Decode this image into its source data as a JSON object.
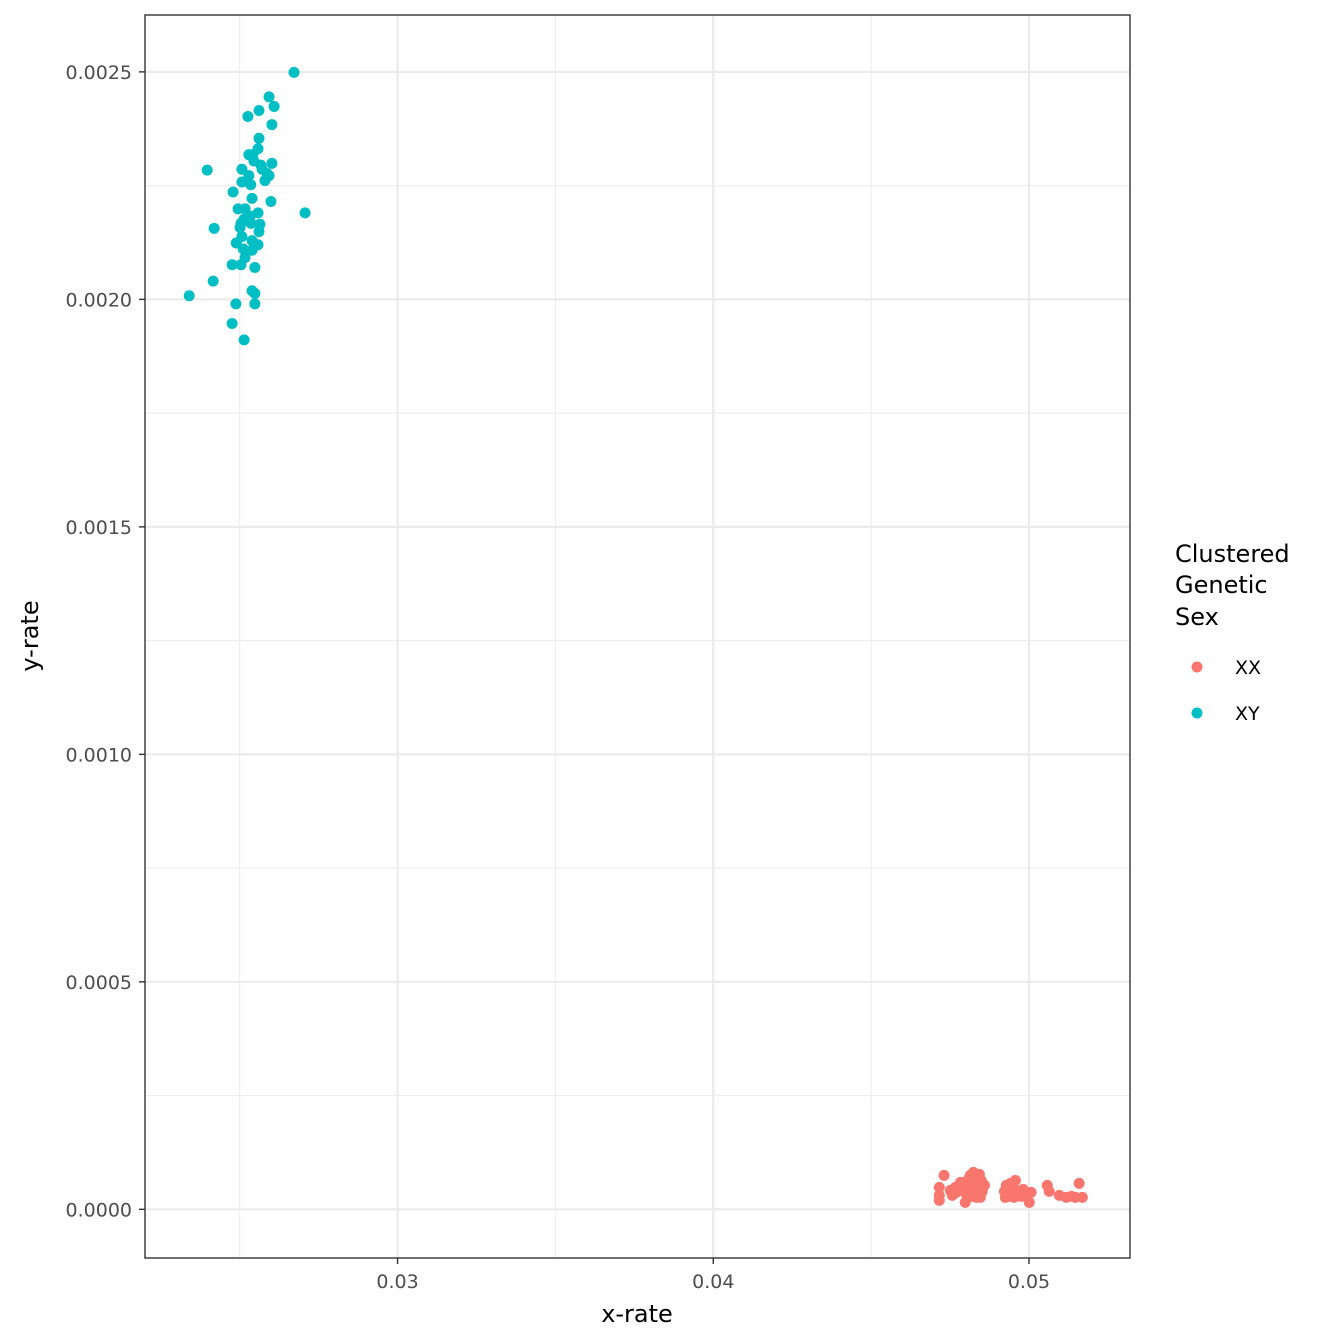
{
  "chart_data": {
    "type": "scatter",
    "xlabel": "x-rate",
    "ylabel": "y-rate",
    "xlim": [
      0.022,
      0.0532
    ],
    "ylim": [
      -0.000107,
      0.002625
    ],
    "x_ticks": [
      0.03,
      0.04,
      0.05
    ],
    "x_tick_labels": [
      "0.03",
      "0.04",
      "0.05"
    ],
    "y_ticks": [
      0,
      0.0005,
      0.001,
      0.0015,
      0.002,
      0.0025
    ],
    "y_tick_labels": [
      "0.0000",
      "0.0005",
      "0.0010",
      "0.0015",
      "0.0020",
      "0.0025"
    ],
    "grid": true,
    "legend": {
      "title_lines": [
        "Clustered",
        "Genetic",
        "Sex"
      ],
      "placement": "right"
    },
    "series": [
      {
        "name": "XX",
        "color": "#F8766D",
        "points": [
          [
            0.04716,
            1.97e-05
          ],
          [
            0.04716,
            3.07e-05
          ],
          [
            0.04716,
            4.82e-05
          ],
          [
            0.04731,
            7.45e-05
          ],
          [
            0.04751,
            4.16e-05
          ],
          [
            0.04757,
            3.07e-05
          ],
          [
            0.04767,
            4.82e-05
          ],
          [
            0.0477,
            3.72e-05
          ],
          [
            0.04776,
            5.04e-05
          ],
          [
            0.04783,
            5.92e-05
          ],
          [
            0.04786,
            4.16e-05
          ],
          [
            0.04795,
            5.7e-05
          ],
          [
            0.04798,
            1.53e-05
          ],
          [
            0.04802,
            3.29e-05
          ],
          [
            0.04805,
            4.38e-05
          ],
          [
            0.04808,
            6.57e-05
          ],
          [
            0.04811,
            4.82e-05
          ],
          [
            0.04814,
            7.45e-05
          ],
          [
            0.04817,
            5.92e-05
          ],
          [
            0.04817,
            2.85e-05
          ],
          [
            0.04821,
            5.26e-05
          ],
          [
            0.04821,
            3.72e-05
          ],
          [
            0.04824,
            8.11e-05
          ],
          [
            0.04827,
            6.35e-05
          ],
          [
            0.0483,
            4.38e-05
          ],
          [
            0.04833,
            2.63e-05
          ],
          [
            0.04833,
            7.01e-05
          ],
          [
            0.04836,
            5.7e-05
          ],
          [
            0.0484,
            3.5e-05
          ],
          [
            0.04843,
            7.67e-05
          ],
          [
            0.04846,
            4.82e-05
          ],
          [
            0.04846,
            2.63e-05
          ],
          [
            0.04849,
            6.35e-05
          ],
          [
            0.04852,
            3.94e-05
          ],
          [
            0.04859,
            5.26e-05
          ],
          [
            0.04922,
            3.94e-05
          ],
          [
            0.04925,
            2.63e-05
          ],
          [
            0.04928,
            5.26e-05
          ],
          [
            0.04931,
            3.72e-05
          ],
          [
            0.04938,
            4.6e-05
          ],
          [
            0.04938,
            2.85e-05
          ],
          [
            0.04941,
            5.7e-05
          ],
          [
            0.04947,
            3.72e-05
          ],
          [
            0.0495,
            4.82e-05
          ],
          [
            0.04953,
            2.63e-05
          ],
          [
            0.04957,
            6.35e-05
          ],
          [
            0.0496,
            4.16e-05
          ],
          [
            0.04963,
            3.07e-05
          ],
          [
            0.04969,
            3.94e-05
          ],
          [
            0.04976,
            2.85e-05
          ],
          [
            0.04982,
            4.38e-05
          ],
          [
            0.04998,
            3.29e-05
          ],
          [
            0.05001,
            1.53e-05
          ],
          [
            0.05007,
            3.72e-05
          ],
          [
            0.05058,
            5.26e-05
          ],
          [
            0.05064,
            3.94e-05
          ],
          [
            0.05096,
            3.07e-05
          ],
          [
            0.05118,
            2.63e-05
          ],
          [
            0.05134,
            2.85e-05
          ],
          [
            0.05147,
            2.63e-05
          ],
          [
            0.05159,
            5.7e-05
          ],
          [
            0.05169,
            2.63e-05
          ]
        ]
      },
      {
        "name": "XY",
        "color": "#00BFC4",
        "points": [
          [
            0.02672,
            0.002499
          ],
          [
            0.02593,
            0.002445
          ],
          [
            0.02609,
            0.002424
          ],
          [
            0.02561,
            0.002415
          ],
          [
            0.02526,
            0.002402
          ],
          [
            0.02602,
            0.002384
          ],
          [
            0.02561,
            0.002354
          ],
          [
            0.02558,
            0.002331
          ],
          [
            0.02529,
            0.002318
          ],
          [
            0.02542,
            0.002318
          ],
          [
            0.02545,
            0.002304
          ],
          [
            0.02602,
            0.002299
          ],
          [
            0.02567,
            0.002295
          ],
          [
            0.02571,
            0.002286
          ],
          [
            0.02507,
            0.002286
          ],
          [
            0.02397,
            0.002284
          ],
          [
            0.02586,
            0.002277
          ],
          [
            0.02529,
            0.002272
          ],
          [
            0.02593,
            0.002272
          ],
          [
            0.0258,
            0.002261
          ],
          [
            0.02507,
            0.002258
          ],
          [
            0.02535,
            0.002252
          ],
          [
            0.02479,
            0.002236
          ],
          [
            0.02539,
            0.002222
          ],
          [
            0.02599,
            0.002215
          ],
          [
            0.02495,
            0.002199
          ],
          [
            0.02517,
            0.002199
          ],
          [
            0.02707,
            0.00219
          ],
          [
            0.02558,
            0.00219
          ],
          [
            0.02533,
            0.002183
          ],
          [
            0.02514,
            0.002176
          ],
          [
            0.02504,
            0.002167
          ],
          [
            0.02536,
            0.002167
          ],
          [
            0.02564,
            0.002165
          ],
          [
            0.02501,
            0.002158
          ],
          [
            0.02419,
            0.002156
          ],
          [
            0.02561,
            0.002149
          ],
          [
            0.02507,
            0.002138
          ],
          [
            0.02539,
            0.002129
          ],
          [
            0.02489,
            0.002124
          ],
          [
            0.02558,
            0.00212
          ],
          [
            0.02511,
            0.002111
          ],
          [
            0.02539,
            0.002108
          ],
          [
            0.02517,
            0.002092
          ],
          [
            0.02476,
            0.002076
          ],
          [
            0.02504,
            0.002076
          ],
          [
            0.02548,
            0.00207
          ],
          [
            0.02416,
            0.00204
          ],
          [
            0.02539,
            0.002019
          ],
          [
            0.02548,
            0.002013
          ],
          [
            0.0234,
            0.002008
          ],
          [
            0.02488,
            0.00199
          ],
          [
            0.02548,
            0.00199
          ],
          [
            0.02476,
            0.001947
          ],
          [
            0.02514,
            0.001911
          ]
        ]
      }
    ]
  }
}
